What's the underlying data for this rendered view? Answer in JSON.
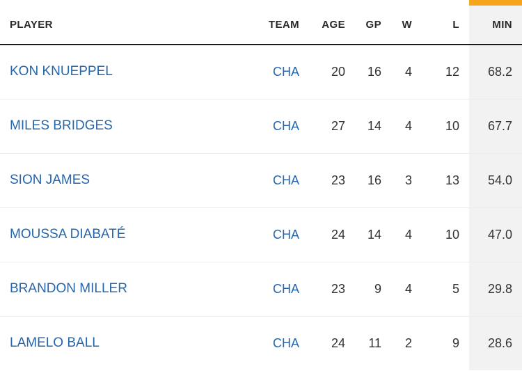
{
  "colors": {
    "link-color": "#2566ac",
    "highlight-bar": "#f5a51d",
    "min-bg": "#f2f2f2",
    "header-text": "#2a2a2a",
    "body-text": "#333333"
  },
  "table": {
    "sorted_column": "MIN",
    "columns": {
      "player": "PLAYER",
      "team": "TEAM",
      "age": "AGE",
      "gp": "GP",
      "w": "W",
      "l": "L",
      "min": "MIN"
    },
    "rows": [
      {
        "player": "KON KNUEPPEL",
        "team": "CHA",
        "age": "20",
        "gp": "16",
        "w": "4",
        "l": "12",
        "min": "68.2"
      },
      {
        "player": "MILES BRIDGES",
        "team": "CHA",
        "age": "27",
        "gp": "14",
        "w": "4",
        "l": "10",
        "min": "67.7"
      },
      {
        "player": "SION JAMES",
        "team": "CHA",
        "age": "23",
        "gp": "16",
        "w": "3",
        "l": "13",
        "min": "54.0"
      },
      {
        "player": "MOUSSA DIABATÉ",
        "team": "CHA",
        "age": "24",
        "gp": "14",
        "w": "4",
        "l": "10",
        "min": "47.0"
      },
      {
        "player": "BRANDON MILLER",
        "team": "CHA",
        "age": "23",
        "gp": "9",
        "w": "4",
        "l": "5",
        "min": "29.8"
      },
      {
        "player": "LAMELO BALL",
        "team": "CHA",
        "age": "24",
        "gp": "11",
        "w": "2",
        "l": "9",
        "min": "28.6"
      }
    ]
  }
}
